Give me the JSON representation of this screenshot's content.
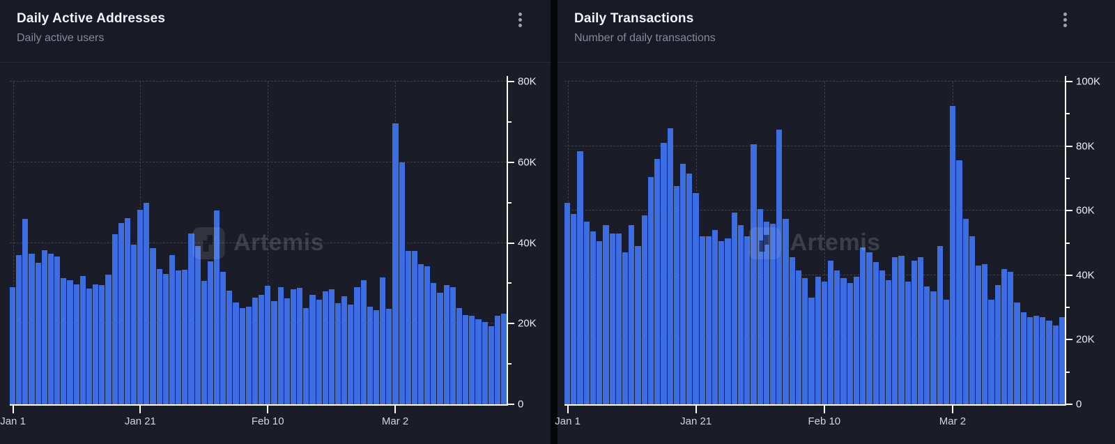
{
  "colors": {
    "page_background": "#05060a",
    "panel_background": "#181b25",
    "plot_background": "#1a1d28",
    "bar_fill": "#3d6de2",
    "axis": "#ffffff",
    "gridline": "#3a3f4e",
    "title_text": "#f2f4f8",
    "subtitle_text": "#848a99",
    "tick_label": "#e9ecf2"
  },
  "panels": [
    {
      "title": "Daily Active Addresses",
      "subtitle": "Daily active users",
      "menu_icon": "kebab-menu-icon",
      "watermark": "Artemis"
    },
    {
      "title": "Daily Transactions",
      "subtitle": "Number of daily transactions",
      "menu_icon": "kebab-menu-icon",
      "watermark": "Artemis"
    }
  ],
  "chart_data": [
    {
      "type": "bar",
      "title": "Daily Active Addresses",
      "xlabel": "",
      "ylabel": "",
      "ylim": [
        0,
        80000
      ],
      "grid": "dashed",
      "legend_position": "none",
      "yticks": [
        {
          "v": 0,
          "label": "0"
        },
        {
          "v": 20000,
          "label": "20K"
        },
        {
          "v": 40000,
          "label": "40K"
        },
        {
          "v": 60000,
          "label": "60K"
        },
        {
          "v": 80000,
          "label": "80K"
        }
      ],
      "xticks": [
        {
          "index": 0,
          "label": "Jan 1"
        },
        {
          "index": 20,
          "label": "Jan 21"
        },
        {
          "index": 40,
          "label": "Feb 10"
        },
        {
          "index": 60,
          "label": "Mar 2"
        }
      ],
      "values": [
        29000,
        37000,
        46000,
        37400,
        35000,
        38200,
        37300,
        36700,
        31200,
        30700,
        29800,
        31800,
        28600,
        29800,
        29500,
        32100,
        42200,
        45000,
        46200,
        39600,
        48200,
        49900,
        38700,
        33500,
        32400,
        36900,
        33100,
        33400,
        42300,
        39200,
        30500,
        35400,
        48100,
        32800,
        28200,
        25300,
        23900,
        24200,
        26500,
        27100,
        29400,
        25600,
        29100,
        26200,
        28500,
        28800,
        23900,
        27100,
        26000,
        28000,
        28500,
        25000,
        26800,
        24700,
        29100,
        30800,
        24200,
        23300,
        31400,
        23600,
        69700,
        59900,
        38000,
        38000,
        34800,
        34300,
        30000,
        27600,
        29600,
        29100,
        23900,
        22100,
        21900,
        21000,
        20400,
        19300,
        21900,
        22500
      ]
    },
    {
      "type": "bar",
      "title": "Daily Transactions",
      "xlabel": "",
      "ylabel": "",
      "ylim": [
        0,
        100000
      ],
      "grid": "dashed",
      "legend_position": "none",
      "yticks": [
        {
          "v": 0,
          "label": "0"
        },
        {
          "v": 20000,
          "label": "20K"
        },
        {
          "v": 40000,
          "label": "40K"
        },
        {
          "v": 60000,
          "label": "60K"
        },
        {
          "v": 80000,
          "label": "80K"
        },
        {
          "v": 100000,
          "label": "100K"
        }
      ],
      "xticks": [
        {
          "index": 0,
          "label": "Jan 1"
        },
        {
          "index": 20,
          "label": "Jan 21"
        },
        {
          "index": 40,
          "label": "Feb 10"
        },
        {
          "index": 60,
          "label": "Mar 2"
        }
      ],
      "values": [
        62500,
        59000,
        78500,
        56500,
        53500,
        50500,
        55500,
        53000,
        53000,
        47000,
        55500,
        49000,
        58500,
        70500,
        76000,
        81000,
        85500,
        67500,
        74500,
        71500,
        65500,
        52000,
        52000,
        54000,
        50500,
        51500,
        59500,
        55500,
        52000,
        80500,
        60500,
        56500,
        56000,
        85000,
        57500,
        45500,
        41500,
        39000,
        33000,
        39500,
        38000,
        44500,
        41500,
        39000,
        37500,
        39500,
        48500,
        47000,
        44000,
        41500,
        38500,
        45500,
        46000,
        38000,
        44500,
        45500,
        36500,
        35000,
        49000,
        32500,
        92500,
        75500,
        57500,
        52000,
        43000,
        43500,
        32500,
        37000,
        42000,
        41000,
        31500,
        28500,
        27000,
        27500,
        27000,
        26000,
        24500,
        27000
      ]
    }
  ]
}
